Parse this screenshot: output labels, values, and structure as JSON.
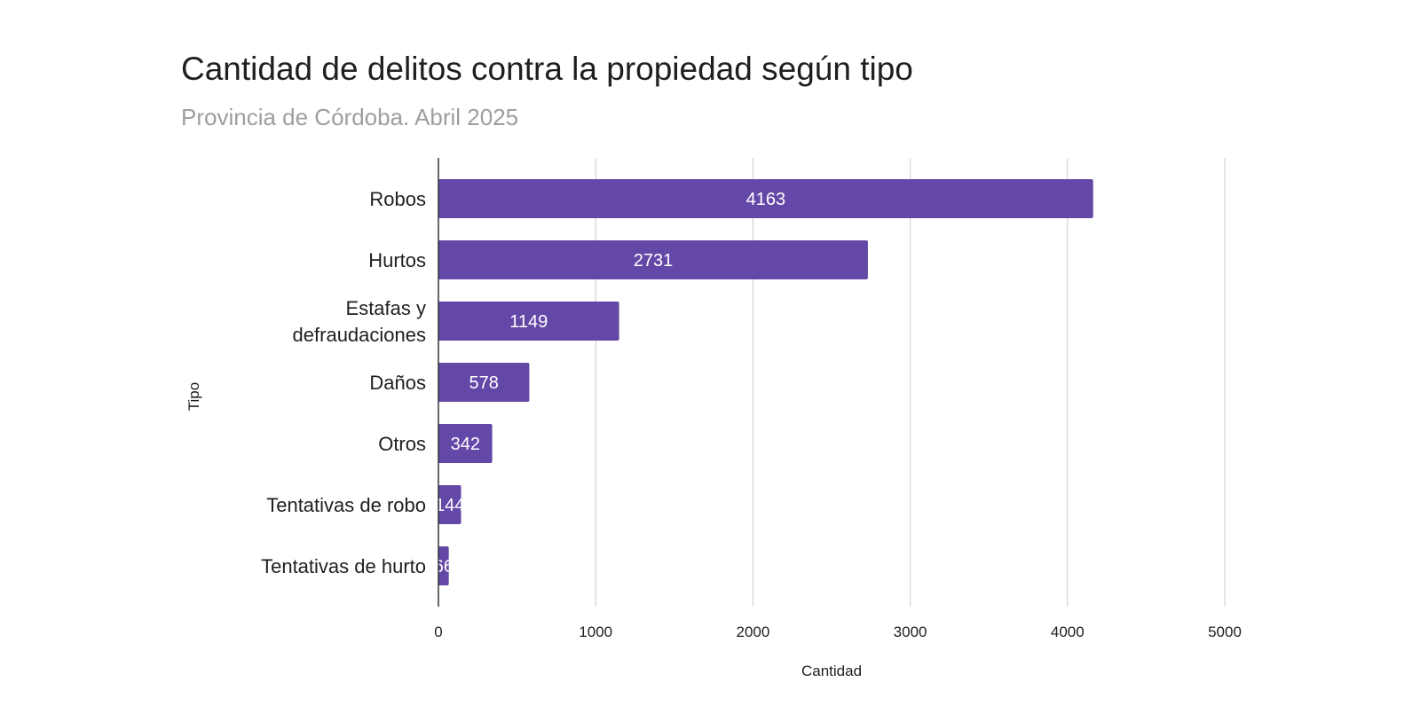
{
  "chart_data": {
    "type": "bar",
    "orientation": "horizontal",
    "title": "Cantidad de delitos contra la propiedad según tipo",
    "subtitle": "Provincia de Córdoba. Abril 2025",
    "xlabel": "Cantidad",
    "ylabel": "Tipo",
    "categories": [
      "Robos",
      "Hurtos",
      "Estafas y defraudaciones",
      "Daños",
      "Otros",
      "Tentativas de robo",
      "Tentativas de hurto"
    ],
    "category_lines": [
      [
        "Robos"
      ],
      [
        "Hurtos"
      ],
      [
        "Estafas y",
        "defraudaciones"
      ],
      [
        "Daños"
      ],
      [
        "Otros"
      ],
      [
        "Tentativas de robo"
      ],
      [
        "Tentativas de hurto"
      ]
    ],
    "values": [
      4163,
      2731,
      1149,
      578,
      342,
      144,
      66
    ],
    "xlim": [
      0,
      5000
    ],
    "xticks": [
      0,
      1000,
      2000,
      3000,
      4000,
      5000
    ],
    "grid": true,
    "legend": "none",
    "data_labels": true,
    "bar_color": "#6448a7",
    "grid_color": "#d4d4d4",
    "axis_color": "#333333"
  }
}
